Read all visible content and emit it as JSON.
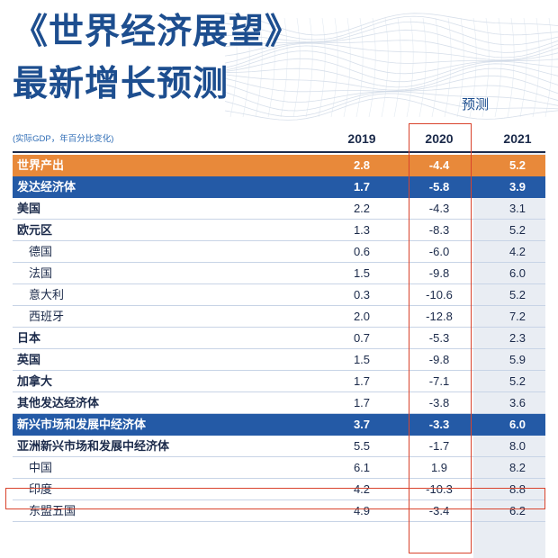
{
  "header": {
    "title_line1": "《世界经济展望》",
    "title_line2": "最新增长预测",
    "forecast_label": "预测",
    "note": "(实际GDP，年百分比变化)",
    "years": [
      "2019",
      "2020",
      "2021"
    ]
  },
  "rows": [
    {
      "label": "世界产出",
      "v2019": "2.8",
      "v2020": "-4.4",
      "v2021": "5.2"
    },
    {
      "label": "发达经济体",
      "v2019": "1.7",
      "v2020": "-5.8",
      "v2021": "3.9"
    },
    {
      "label": "美国",
      "v2019": "2.2",
      "v2020": "-4.3",
      "v2021": "3.1"
    },
    {
      "label": "欧元区",
      "v2019": "1.3",
      "v2020": "-8.3",
      "v2021": "5.2"
    },
    {
      "label": "德国",
      "v2019": "0.6",
      "v2020": "-6.0",
      "v2021": "4.2"
    },
    {
      "label": "法国",
      "v2019": "1.5",
      "v2020": "-9.8",
      "v2021": "6.0"
    },
    {
      "label": "意大利",
      "v2019": "0.3",
      "v2020": "-10.6",
      "v2021": "5.2"
    },
    {
      "label": "西班牙",
      "v2019": "2.0",
      "v2020": "-12.8",
      "v2021": "7.2"
    },
    {
      "label": "日本",
      "v2019": "0.7",
      "v2020": "-5.3",
      "v2021": "2.3"
    },
    {
      "label": "英国",
      "v2019": "1.5",
      "v2020": "-9.8",
      "v2021": "5.9"
    },
    {
      "label": "加拿大",
      "v2019": "1.7",
      "v2020": "-7.1",
      "v2021": "5.2"
    },
    {
      "label": "其他发达经济体",
      "v2019": "1.7",
      "v2020": "-3.8",
      "v2021": "3.6"
    },
    {
      "label": "新兴市场和发展中经济体",
      "v2019": "3.7",
      "v2020": "-3.3",
      "v2021": "6.0"
    },
    {
      "label": "亚洲新兴市场和发展中经济体",
      "v2019": "5.5",
      "v2020": "-1.7",
      "v2021": "8.0"
    },
    {
      "label": "中国",
      "v2019": "6.1",
      "v2020": "1.9",
      "v2021": "8.2"
    },
    {
      "label": "印度",
      "v2019": "4.2",
      "v2020": "-10.3",
      "v2021": "8.8"
    },
    {
      "label": "东盟五国",
      "v2019": "4.9",
      "v2020": "-3.4",
      "v2021": "6.2"
    }
  ],
  "colors": {
    "title": "#1d4e8f",
    "world_output_row": "#e8893a",
    "group_row": "#245aa6",
    "highlight_box": "#d9432c",
    "forecast_shade": "#e9edf3"
  }
}
